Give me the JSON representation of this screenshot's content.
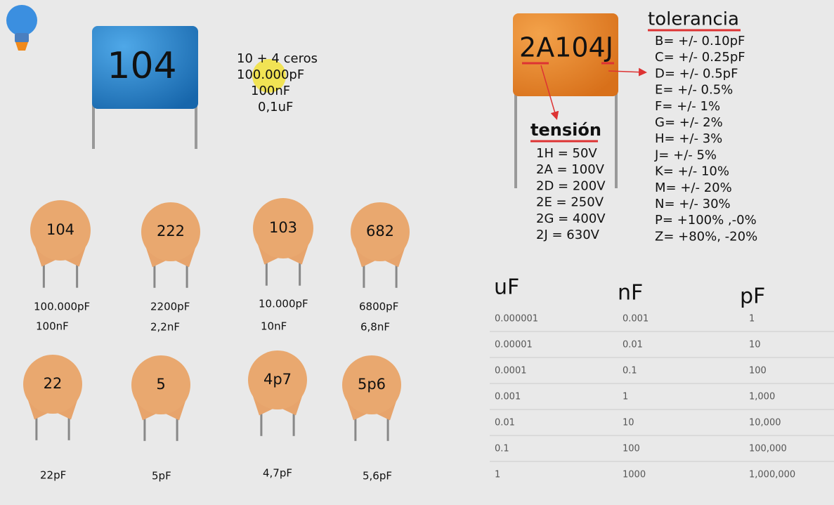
{
  "box_capacitor": {
    "code": "104",
    "notes": [
      "10 + 4 ceros",
      "100.000pF",
      "100nF",
      "0,1uF"
    ]
  },
  "ceramic": [
    {
      "code": "104",
      "labels": [
        "100.000pF",
        "100nF"
      ]
    },
    {
      "code": "222",
      "labels": [
        "2200pF",
        "2,2nF"
      ]
    },
    {
      "code": "103",
      "labels": [
        "10.000pF",
        "10nF"
      ]
    },
    {
      "code": "682",
      "labels": [
        "6800pF",
        "6,8nF"
      ]
    },
    {
      "code": "22",
      "labels": [
        "22pF"
      ]
    },
    {
      "code": "5",
      "labels": [
        "5pF"
      ]
    },
    {
      "code": "4p7",
      "labels": [
        "4,7pF"
      ]
    },
    {
      "code": "5p6",
      "labels": [
        "5,6pF"
      ]
    }
  ],
  "film_capacitor": {
    "code": "2A104J",
    "tension": {
      "title": "tensión",
      "items": [
        "1H = 50V",
        "2A = 100V",
        "2D = 200V",
        "2E = 250V",
        "2G = 400V",
        "2J = 630V"
      ]
    },
    "tolerancia": {
      "title": "tolerancia",
      "items": [
        "B= +/- 0.10pF",
        "C= +/- 0.25pF",
        "D= +/- 0.5pF",
        "E= +/- 0.5%",
        "F= +/- 1%",
        "G= +/- 2%",
        "H= +/- 3%",
        "J= +/- 5%",
        "K= +/- 10%",
        "M= +/- 20%",
        "N= +/- 30%",
        "P= +100% ,-0%",
        "Z= +80%, -20%"
      ]
    }
  },
  "table": {
    "headers": [
      "uF",
      "nF",
      "pF"
    ],
    "rows": [
      [
        "0.000001",
        "0.001",
        "1"
      ],
      [
        "0.00001",
        "0.01",
        "10"
      ],
      [
        "0.0001",
        "0.1",
        "100"
      ],
      [
        "0.001",
        "1",
        "1,000"
      ],
      [
        "0.01",
        "10",
        "10,000"
      ],
      [
        "0.1",
        "100",
        "100,000"
      ],
      [
        "1",
        "1000",
        "1,000,000"
      ]
    ]
  }
}
